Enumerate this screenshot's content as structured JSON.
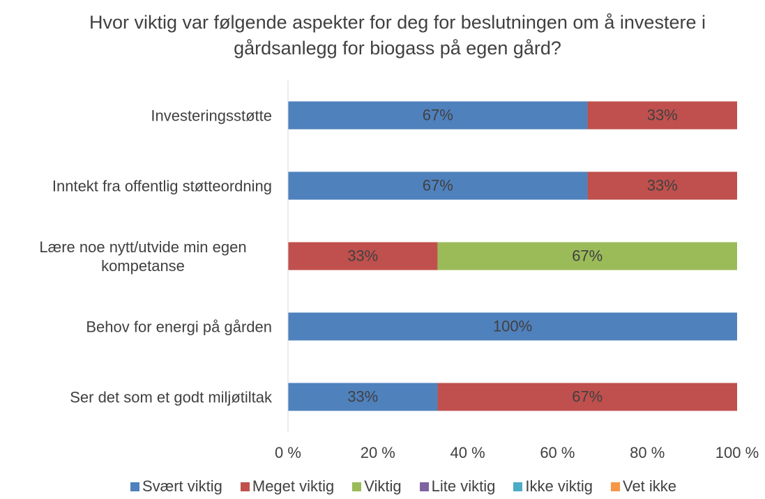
{
  "chart_data": {
    "type": "stacked-bar-horizontal",
    "title": "Hvor viktig var følgende aspekter for deg for beslutningen om å investere i gårdsanlegg for biogass på egen gård?",
    "categories": [
      "Investeringsstøtte",
      "Inntekt fra offentlig støtteordning",
      "Lære noe nytt/utvide min egen kompetanse",
      "Behov for energi på gården",
      "Ser det som et godt miljøtiltak"
    ],
    "series": [
      {
        "name": "Svært viktig",
        "color": "#4f81bd",
        "values": [
          66.7,
          66.7,
          0,
          100,
          33.3
        ],
        "value_labels": [
          "67%",
          "67%",
          null,
          "100%",
          "33%"
        ]
      },
      {
        "name": "Meget viktig",
        "color": "#c0504d",
        "values": [
          33.3,
          33.3,
          33.3,
          0,
          66.7
        ],
        "value_labels": [
          "33%",
          "33%",
          "33%",
          null,
          "67%"
        ]
      },
      {
        "name": "Viktig",
        "color": "#9bbb59",
        "values": [
          0,
          0,
          66.7,
          0,
          0
        ],
        "value_labels": [
          null,
          null,
          "67%",
          null,
          null
        ]
      },
      {
        "name": "Lite viktig",
        "color": "#8064a2",
        "values": [
          0,
          0,
          0,
          0,
          0
        ],
        "value_labels": [
          null,
          null,
          null,
          null,
          null
        ]
      },
      {
        "name": "Ikke viktig",
        "color": "#4bacc6",
        "values": [
          0,
          0,
          0,
          0,
          0
        ],
        "value_labels": [
          null,
          null,
          null,
          null,
          null
        ]
      },
      {
        "name": "Vet ikke",
        "color": "#f79646",
        "values": [
          0,
          0,
          0,
          0,
          0
        ],
        "value_labels": [
          null,
          null,
          null,
          null,
          null
        ]
      }
    ],
    "xlim": [
      0,
      100
    ],
    "xticks": [
      {
        "value": 0,
        "label": "0 %"
      },
      {
        "value": 20,
        "label": "20 %"
      },
      {
        "value": 40,
        "label": "40 %"
      },
      {
        "value": 60,
        "label": "60 %"
      },
      {
        "value": 80,
        "label": "80 %"
      },
      {
        "value": 100,
        "label": "100 %"
      }
    ],
    "legend": "bottom"
  }
}
